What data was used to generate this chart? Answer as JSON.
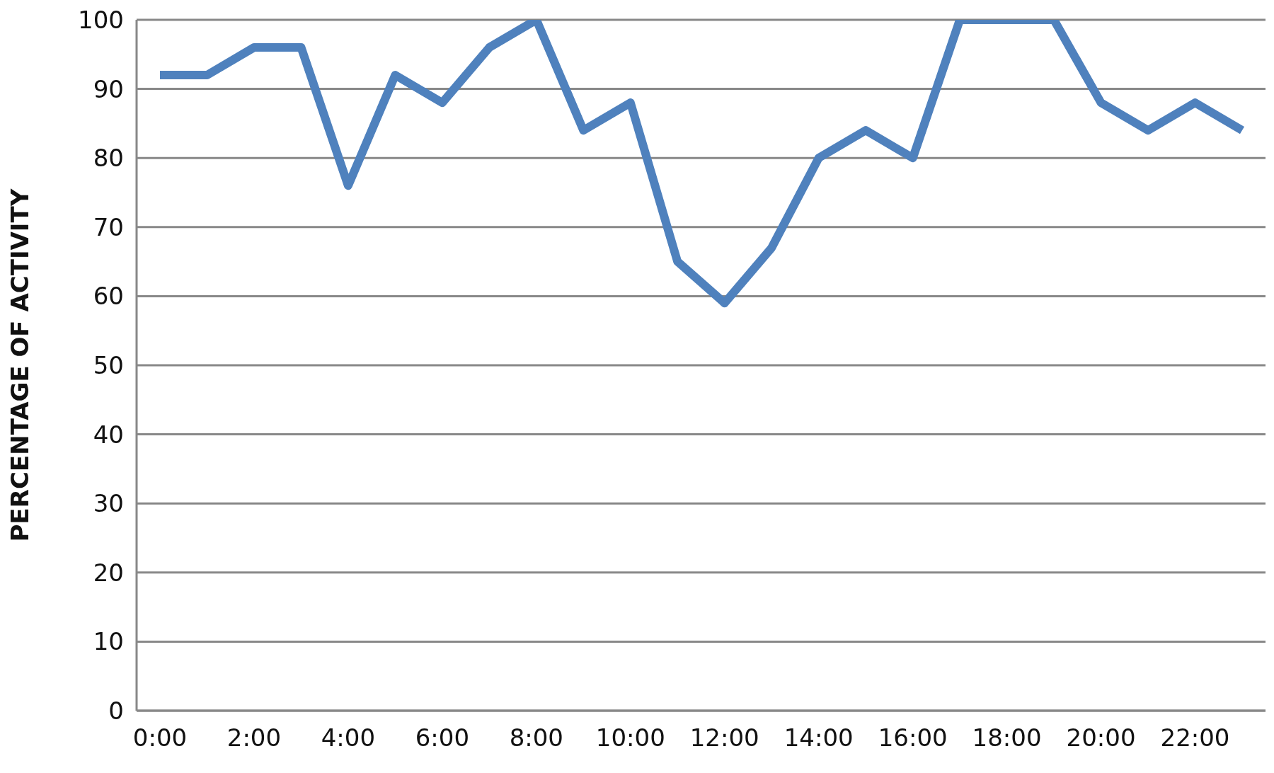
{
  "chart_data": {
    "type": "line",
    "ylabel": "PERCENTAGE OF ACTIVITY",
    "categories": [
      "0:00",
      null,
      "2:00",
      null,
      "4:00",
      null,
      "6:00",
      null,
      "8:00",
      null,
      "10:00",
      null,
      "12:00",
      null,
      "14:00",
      null,
      "16:00",
      null,
      "18:00",
      null,
      "20:00",
      null,
      "22:00",
      null
    ],
    "series": [
      {
        "color": "#4f81bd",
        "values": [
          92,
          92,
          96,
          96,
          76,
          92,
          88,
          96,
          100,
          84,
          88,
          65,
          59,
          67,
          80,
          84,
          80,
          100,
          100,
          100,
          88,
          84,
          88,
          84
        ]
      }
    ],
    "ylim": [
      0,
      100
    ],
    "yticks": [
      0,
      10,
      20,
      30,
      40,
      50,
      60,
      70,
      80,
      90,
      100
    ],
    "grid": "y",
    "legend": false,
    "marker": "none",
    "line_style": "solid"
  }
}
